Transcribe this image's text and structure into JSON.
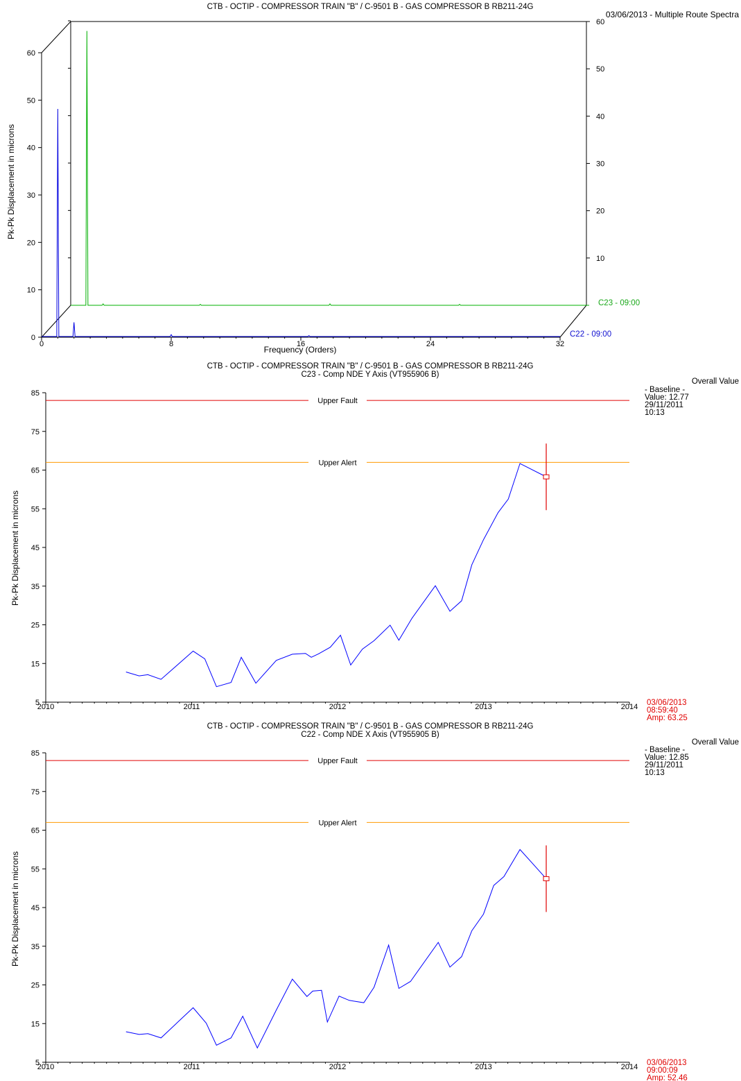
{
  "spectra": {
    "title": "CTB - OCTIP - COMPRESSOR TRAIN  \"B\" / C-9501 B - GAS COMPRESSOR B   RB211-24G",
    "subtitle": "03/06/2013 - Multiple Route Spectra",
    "ylabel": "Pk-Pk Displacement in microns",
    "xlabel": "Frequency (Orders)",
    "series_labels": {
      "back": "C23 - 09:00",
      "front": "C22 - 09:00"
    }
  },
  "trend1": {
    "title": "CTB - OCTIP - COMPRESSOR TRAIN  \"B\" / C-9501 B - GAS COMPRESSOR B   RB211-24G",
    "subtitle": "C23 - Comp NDE Y Axis (VT955906 B)",
    "ylabel": "Pk-Pk Displacement in microns",
    "fault_label": "Upper Fault",
    "alert_label": "Upper Alert",
    "side": {
      "heading": "Overall Value",
      "baseline": "- Baseline -",
      "value": "Value: 12.77",
      "date": "29/11/2011",
      "time": "10:13"
    },
    "cursor": {
      "date": "03/06/2013",
      "time": "08:59:40",
      "amp": "Amp: 63.25"
    }
  },
  "trend2": {
    "title": "CTB - OCTIP - COMPRESSOR TRAIN  \"B\" / C-9501 B - GAS COMPRESSOR B   RB211-24G",
    "subtitle": "C22 - Comp NDE X Axis (VT955905 B)",
    "ylabel": "Pk-Pk Displacement in microns",
    "fault_label": "Upper Fault",
    "alert_label": "Upper Alert",
    "side": {
      "heading": "Overall Value",
      "baseline": "- Baseline -",
      "value": "Value: 12.85",
      "date": "29/11/2011",
      "time": "10:13"
    },
    "cursor": {
      "date": "03/06/2013",
      "time": "09:00:09",
      "amp": "Amp: 52.46"
    }
  },
  "colors": {
    "fault": "#e00000",
    "alert": "#ff9900",
    "trend": "#0000ff",
    "back_spectrum": "#00b000",
    "front_spectrum": "#0000e0"
  },
  "chart_data": [
    {
      "type": "line",
      "name_key": "spectra",
      "x_ticks": [
        0,
        8,
        16,
        24,
        32
      ],
      "xlim": [
        0,
        32
      ],
      "y_ticks_left": [
        0,
        10,
        20,
        30,
        40,
        50,
        60
      ],
      "ylim_left": [
        0,
        65
      ],
      "y_ticks_right": [
        10,
        20,
        30,
        40,
        50,
        60
      ],
      "ylim_right": [
        0,
        60
      ],
      "series": [
        {
          "name": "C22 - 09:00",
          "peaks": [
            [
              1,
              48
            ],
            [
              2,
              3
            ],
            [
              8,
              0.4
            ],
            [
              16.5,
              0.2
            ]
          ]
        },
        {
          "name": "C23 - 09:00",
          "peaks": [
            [
              1,
              58
            ],
            [
              2,
              0.3
            ],
            [
              8,
              0.2
            ],
            [
              16,
              0.3
            ],
            [
              24,
              0.2
            ]
          ]
        }
      ]
    },
    {
      "type": "line",
      "name_key": "trend1",
      "x_ticks": [
        2010,
        2011,
        2012,
        2013,
        2014
      ],
      "xlim": [
        2010,
        2014
      ],
      "y_ticks": [
        5,
        15,
        25,
        35,
        45,
        55,
        65,
        75,
        85
      ],
      "ylim": [
        5,
        85
      ],
      "upper_fault": 83,
      "upper_alert": 67,
      "x": [
        2010.55,
        2010.64,
        2010.7,
        2010.79,
        2011.01,
        2011.09,
        2011.17,
        2011.27,
        2011.34,
        2011.44,
        2011.58,
        2011.69,
        2011.78,
        2011.82,
        2011.87,
        2011.95,
        2012.02,
        2012.09,
        2012.17,
        2012.25,
        2012.36,
        2012.42,
        2012.51,
        2012.67,
        2012.77,
        2012.85,
        2012.92,
        2013.0,
        2013.1,
        2013.17,
        2013.25,
        2013.43
      ],
      "values": [
        12.8,
        11.8,
        12.1,
        10.9,
        18.2,
        16.2,
        9.0,
        10.1,
        16.6,
        9.9,
        15.8,
        17.4,
        17.6,
        16.6,
        17.5,
        19.2,
        22.3,
        14.6,
        18.7,
        20.9,
        24.9,
        21.0,
        26.7,
        35.1,
        28.5,
        31.2,
        40.5,
        47.0,
        54.0,
        57.5,
        66.7,
        63.25
      ]
    },
    {
      "type": "line",
      "name_key": "trend2",
      "x_ticks": [
        2010,
        2011,
        2012,
        2013,
        2014
      ],
      "xlim": [
        2010,
        2014
      ],
      "y_ticks": [
        5,
        15,
        25,
        35,
        45,
        55,
        65,
        75,
        85
      ],
      "ylim": [
        5,
        85
      ],
      "upper_fault": 83,
      "upper_alert": 67,
      "x": [
        2010.55,
        2010.64,
        2010.7,
        2010.79,
        2011.01,
        2011.1,
        2011.17,
        2011.27,
        2011.35,
        2011.45,
        2011.58,
        2011.69,
        2011.79,
        2011.83,
        2011.89,
        2011.93,
        2012.01,
        2012.08,
        2012.18,
        2012.25,
        2012.35,
        2012.42,
        2012.5,
        2012.69,
        2012.77,
        2012.85,
        2012.92,
        2013.0,
        2013.07,
        2013.14,
        2013.25,
        2013.43
      ],
      "values": [
        12.9,
        12.2,
        12.4,
        11.3,
        19.1,
        15.1,
        9.4,
        11.3,
        16.9,
        8.7,
        18.5,
        26.5,
        22.0,
        23.4,
        23.6,
        15.4,
        22.1,
        21.0,
        20.4,
        24.4,
        35.3,
        24.1,
        25.9,
        36.0,
        29.6,
        32.3,
        39.0,
        43.3,
        50.7,
        53.0,
        60.0,
        52.46
      ]
    }
  ]
}
